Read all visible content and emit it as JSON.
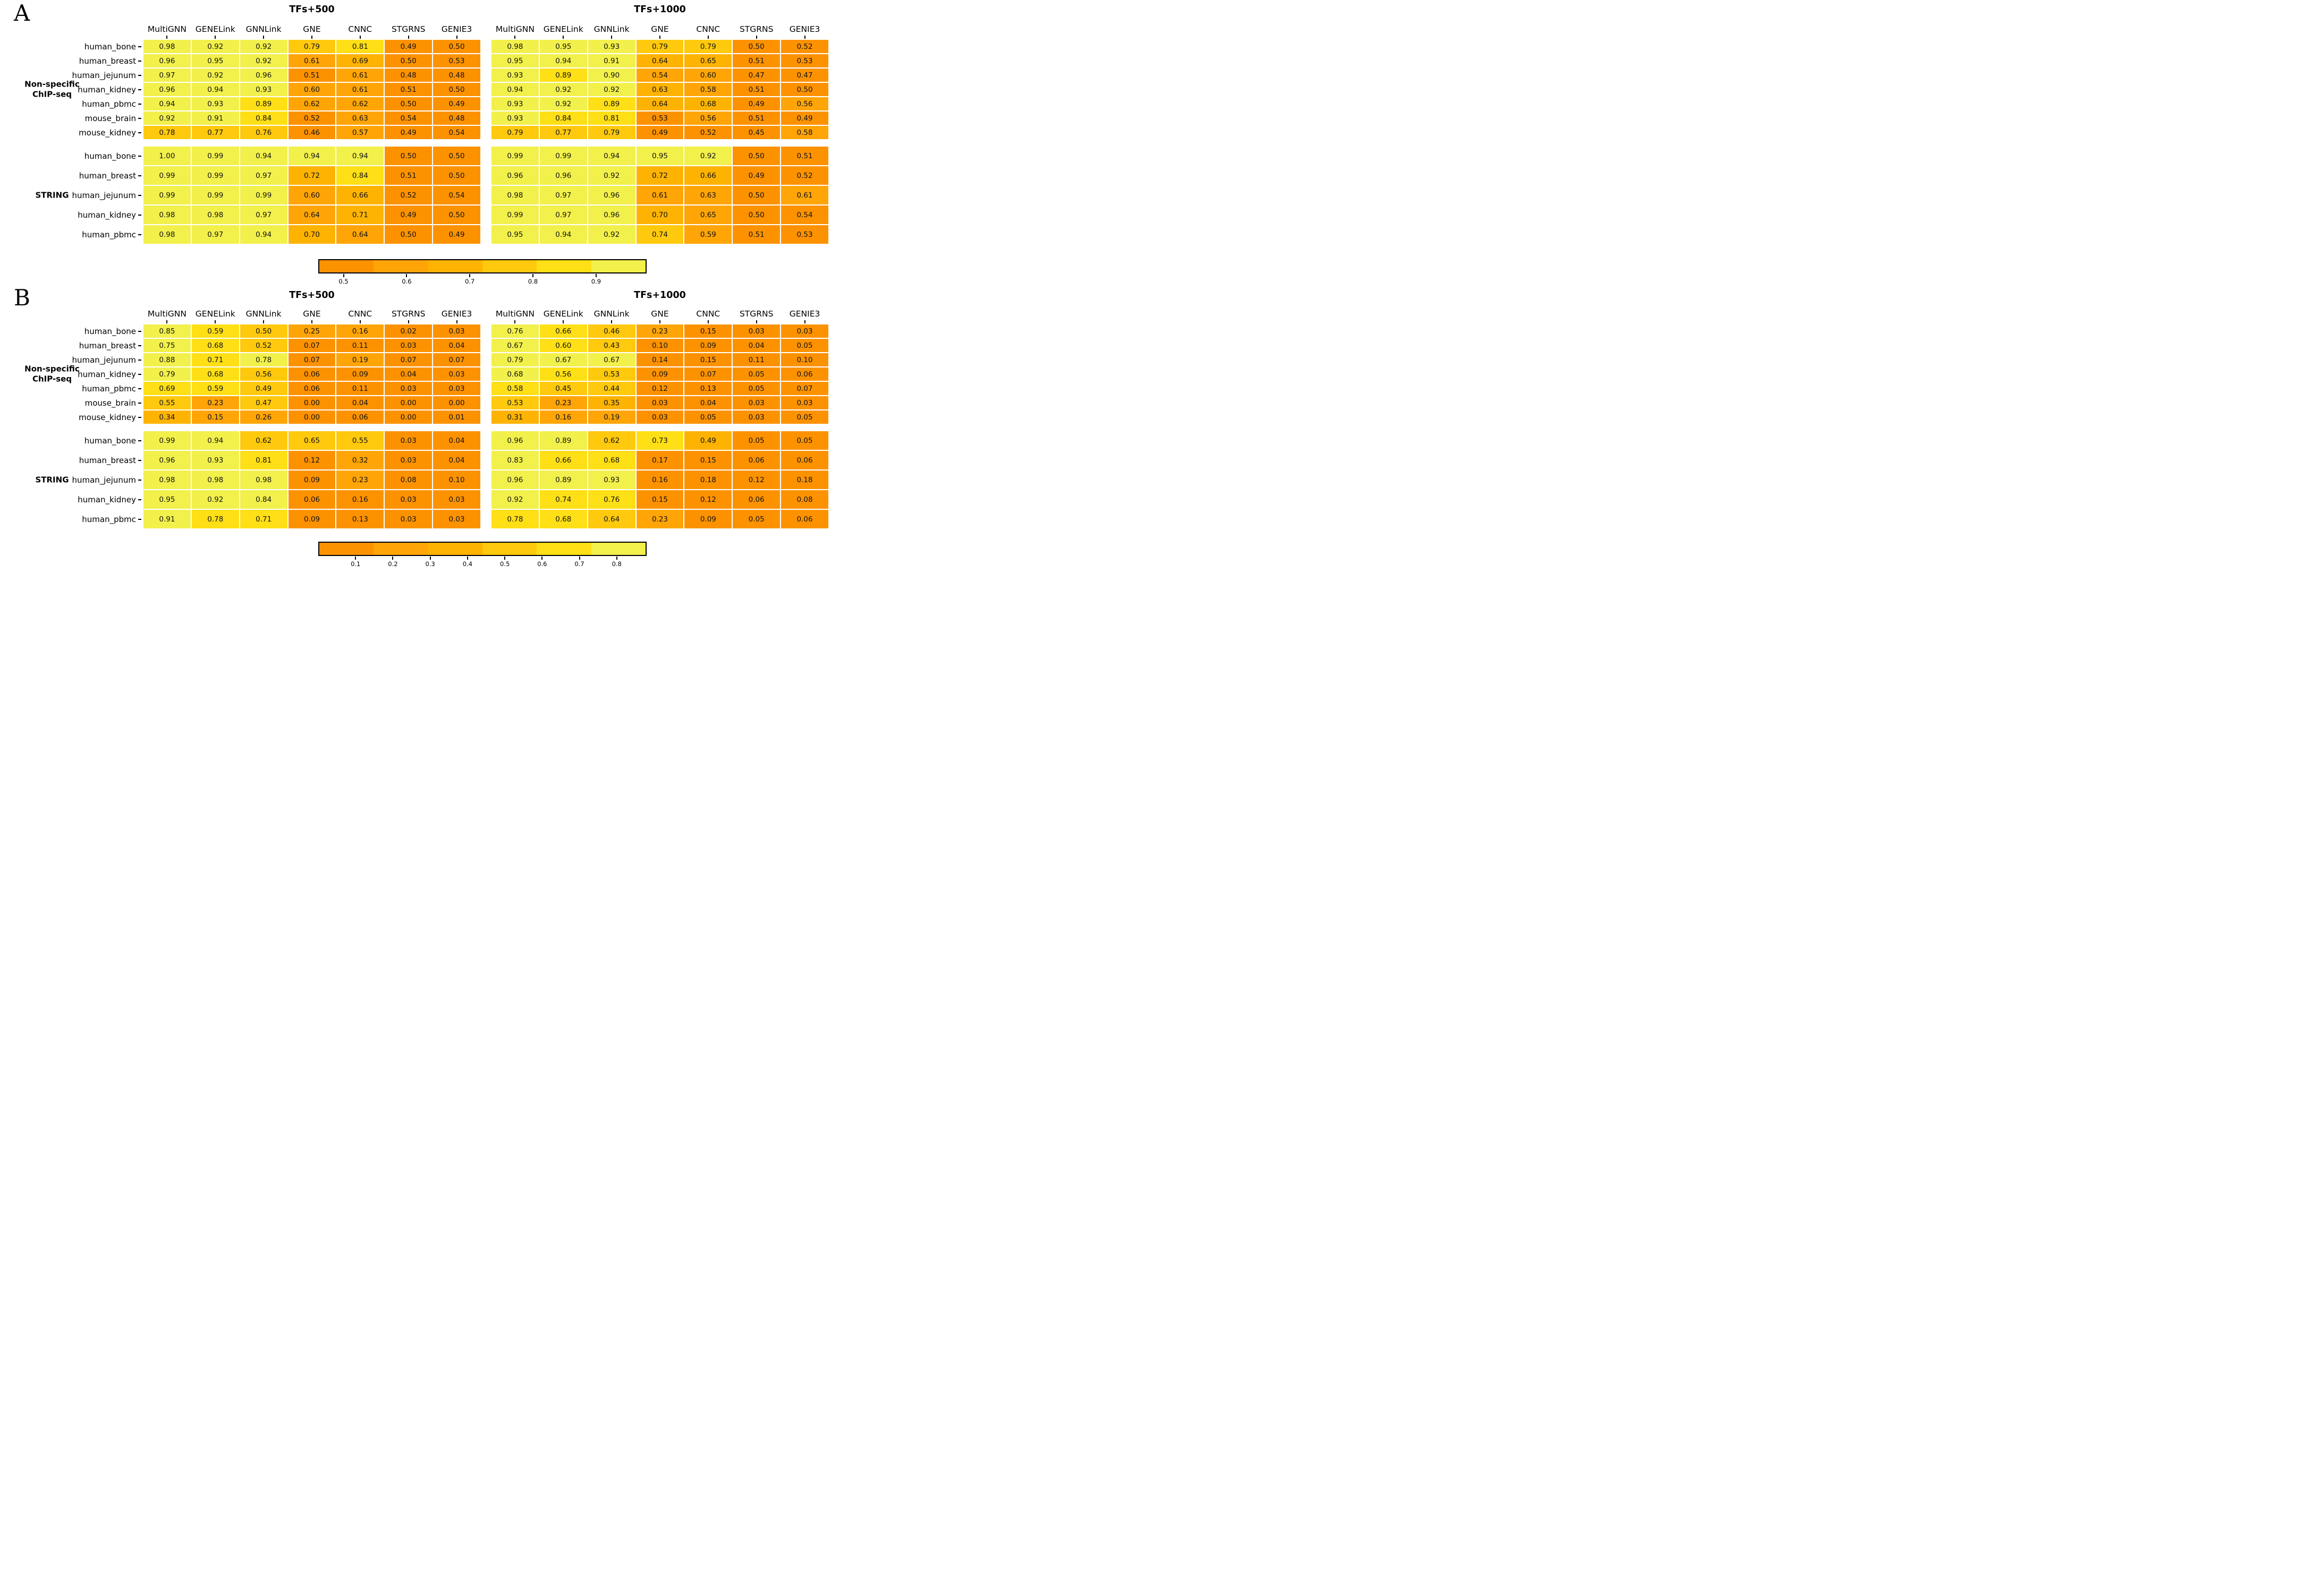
{
  "figure_type": "paired heatmap panels",
  "colormap": {
    "description": "6-level discrete orange-to-pale-yellow (Wistia-reversed-like), per-block min/max normalization",
    "levels": [
      "#FD9201",
      "#FFA507",
      "#FEB303",
      "#FFC90D",
      "#FFDF15",
      "#F2F04B"
    ]
  },
  "chart_data": [
    {
      "type": "heatmap",
      "panel": "A",
      "letter": "A",
      "block_titles": [
        "TFs+500",
        "TFs+1000"
      ],
      "columns": [
        "MultiGNN",
        "GENELink",
        "GNNLink",
        "GNE",
        "CNNC",
        "STGRNS",
        "GENIE3"
      ],
      "row_groups": [
        {
          "label_lines": [
            "Non-specific",
            "ChIP-seq"
          ],
          "rows": [
            "human_bone",
            "human_breast",
            "human_jejunum",
            "human_kidney",
            "human_pbmc",
            "mouse_brain",
            "mouse_kidney"
          ],
          "blocks": [
            {
              "tf": "TFs+500",
              "values": [
                [
                  "0.98",
                  "0.92",
                  "0.92",
                  "0.79",
                  "0.81",
                  "0.49",
                  "0.50"
                ],
                [
                  "0.96",
                  "0.95",
                  "0.92",
                  "0.61",
                  "0.69",
                  "0.50",
                  "0.53"
                ],
                [
                  "0.97",
                  "0.92",
                  "0.96",
                  "0.51",
                  "0.61",
                  "0.48",
                  "0.48"
                ],
                [
                  "0.96",
                  "0.94",
                  "0.93",
                  "0.60",
                  "0.61",
                  "0.51",
                  "0.50"
                ],
                [
                  "0.94",
                  "0.93",
                  "0.89",
                  "0.62",
                  "0.62",
                  "0.50",
                  "0.49"
                ],
                [
                  "0.92",
                  "0.91",
                  "0.84",
                  "0.52",
                  "0.63",
                  "0.54",
                  "0.48"
                ],
                [
                  "0.78",
                  "0.77",
                  "0.76",
                  "0.46",
                  "0.57",
                  "0.49",
                  "0.54"
                ]
              ]
            },
            {
              "tf": "TFs+1000",
              "values": [
                [
                  "0.98",
                  "0.95",
                  "0.93",
                  "0.79",
                  "0.79",
                  "0.50",
                  "0.52"
                ],
                [
                  "0.95",
                  "0.94",
                  "0.91",
                  "0.64",
                  "0.65",
                  "0.51",
                  "0.53"
                ],
                [
                  "0.93",
                  "0.89",
                  "0.90",
                  "0.54",
                  "0.60",
                  "0.47",
                  "0.47"
                ],
                [
                  "0.94",
                  "0.92",
                  "0.92",
                  "0.63",
                  "0.58",
                  "0.51",
                  "0.50"
                ],
                [
                  "0.93",
                  "0.92",
                  "0.89",
                  "0.64",
                  "0.68",
                  "0.49",
                  "0.56"
                ],
                [
                  "0.93",
                  "0.84",
                  "0.81",
                  "0.53",
                  "0.56",
                  "0.51",
                  "0.49"
                ],
                [
                  "0.79",
                  "0.77",
                  "0.79",
                  "0.49",
                  "0.52",
                  "0.45",
                  "0.58"
                ]
              ]
            }
          ]
        },
        {
          "label_lines": [
            "STRING"
          ],
          "rows": [
            "human_bone",
            "human_breast",
            "human_jejunum",
            "human_kidney",
            "human_pbmc"
          ],
          "blocks": [
            {
              "tf": "TFs+500",
              "values": [
                [
                  "1.00",
                  "0.99",
                  "0.94",
                  "0.94",
                  "0.94",
                  "0.50",
                  "0.50"
                ],
                [
                  "0.99",
                  "0.99",
                  "0.97",
                  "0.72",
                  "0.84",
                  "0.51",
                  "0.50"
                ],
                [
                  "0.99",
                  "0.99",
                  "0.99",
                  "0.60",
                  "0.66",
                  "0.52",
                  "0.54"
                ],
                [
                  "0.98",
                  "0.98",
                  "0.97",
                  "0.64",
                  "0.71",
                  "0.49",
                  "0.50"
                ],
                [
                  "0.98",
                  "0.97",
                  "0.94",
                  "0.70",
                  "0.64",
                  "0.50",
                  "0.49"
                ]
              ]
            },
            {
              "tf": "TFs+1000",
              "values": [
                [
                  "0.99",
                  "0.99",
                  "0.94",
                  "0.95",
                  "0.92",
                  "0.50",
                  "0.51"
                ],
                [
                  "0.96",
                  "0.96",
                  "0.92",
                  "0.72",
                  "0.66",
                  "0.49",
                  "0.52"
                ],
                [
                  "0.98",
                  "0.97",
                  "0.96",
                  "0.61",
                  "0.63",
                  "0.50",
                  "0.61"
                ],
                [
                  "0.99",
                  "0.97",
                  "0.96",
                  "0.70",
                  "0.65",
                  "0.50",
                  "0.54"
                ],
                [
                  "0.95",
                  "0.94",
                  "0.92",
                  "0.74",
                  "0.59",
                  "0.51",
                  "0.53"
                ]
              ]
            }
          ]
        }
      ],
      "colorbar": {
        "vmin": 0.46,
        "vmax": 0.98,
        "tick_labels": [
          "0.5",
          "0.6",
          "0.7",
          "0.8",
          "0.9"
        ],
        "tick_values": [
          0.5,
          0.6,
          0.7,
          0.8,
          0.9
        ]
      }
    },
    {
      "type": "heatmap",
      "panel": "B",
      "letter": "B",
      "block_titles": [
        "TFs+500",
        "TFs+1000"
      ],
      "columns": [
        "MultiGNN",
        "GENELink",
        "GNNLink",
        "GNE",
        "CNNC",
        "STGRNS",
        "GENIE3"
      ],
      "row_groups": [
        {
          "label_lines": [
            "Non-specific",
            "ChIP-seq"
          ],
          "rows": [
            "human_bone",
            "human_breast",
            "human_jejunum",
            "human_kidney",
            "human_pbmc",
            "mouse_brain",
            "mouse_kidney"
          ],
          "blocks": [
            {
              "tf": "TFs+500",
              "values": [
                [
                  "0.85",
                  "0.59",
                  "0.50",
                  "0.25",
                  "0.16",
                  "0.02",
                  "0.03"
                ],
                [
                  "0.75",
                  "0.68",
                  "0.52",
                  "0.07",
                  "0.11",
                  "0.03",
                  "0.04"
                ],
                [
                  "0.88",
                  "0.71",
                  "0.78",
                  "0.07",
                  "0.19",
                  "0.07",
                  "0.07"
                ],
                [
                  "0.79",
                  "0.68",
                  "0.56",
                  "0.06",
                  "0.09",
                  "0.04",
                  "0.03"
                ],
                [
                  "0.69",
                  "0.59",
                  "0.49",
                  "0.06",
                  "0.11",
                  "0.03",
                  "0.03"
                ],
                [
                  "0.55",
                  "0.23",
                  "0.47",
                  "0.00",
                  "0.04",
                  "0.00",
                  "0.00"
                ],
                [
                  "0.34",
                  "0.15",
                  "0.26",
                  "0.00",
                  "0.06",
                  "0.00",
                  "0.01"
                ]
              ]
            },
            {
              "tf": "TFs+1000",
              "values": [
                [
                  "0.76",
                  "0.66",
                  "0.46",
                  "0.23",
                  "0.15",
                  "0.03",
                  "0.03"
                ],
                [
                  "0.67",
                  "0.60",
                  "0.43",
                  "0.10",
                  "0.09",
                  "0.04",
                  "0.05"
                ],
                [
                  "0.79",
                  "0.67",
                  "0.67",
                  "0.14",
                  "0.15",
                  "0.11",
                  "0.10"
                ],
                [
                  "0.68",
                  "0.56",
                  "0.53",
                  "0.09",
                  "0.07",
                  "0.05",
                  "0.06"
                ],
                [
                  "0.58",
                  "0.45",
                  "0.44",
                  "0.12",
                  "0.13",
                  "0.05",
                  "0.07"
                ],
                [
                  "0.53",
                  "0.23",
                  "0.35",
                  "0.03",
                  "0.04",
                  "0.03",
                  "0.03"
                ],
                [
                  "0.31",
                  "0.16",
                  "0.19",
                  "0.03",
                  "0.05",
                  "0.03",
                  "0.05"
                ]
              ]
            }
          ]
        },
        {
          "label_lines": [
            "STRING"
          ],
          "rows": [
            "human_bone",
            "human_breast",
            "human_jejunum",
            "human_kidney",
            "human_pbmc"
          ],
          "blocks": [
            {
              "tf": "TFs+500",
              "values": [
                [
                  "0.99",
                  "0.94",
                  "0.62",
                  "0.65",
                  "0.55",
                  "0.03",
                  "0.04"
                ],
                [
                  "0.96",
                  "0.93",
                  "0.81",
                  "0.12",
                  "0.32",
                  "0.03",
                  "0.04"
                ],
                [
                  "0.98",
                  "0.98",
                  "0.98",
                  "0.09",
                  "0.23",
                  "0.08",
                  "0.10"
                ],
                [
                  "0.95",
                  "0.92",
                  "0.84",
                  "0.06",
                  "0.16",
                  "0.03",
                  "0.03"
                ],
                [
                  "0.91",
                  "0.78",
                  "0.71",
                  "0.09",
                  "0.13",
                  "0.03",
                  "0.03"
                ]
              ]
            },
            {
              "tf": "TFs+1000",
              "values": [
                [
                  "0.96",
                  "0.89",
                  "0.62",
                  "0.73",
                  "0.49",
                  "0.05",
                  "0.05"
                ],
                [
                  "0.83",
                  "0.66",
                  "0.68",
                  "0.17",
                  "0.15",
                  "0.06",
                  "0.06"
                ],
                [
                  "0.96",
                  "0.89",
                  "0.93",
                  "0.16",
                  "0.18",
                  "0.12",
                  "0.18"
                ],
                [
                  "0.92",
                  "0.74",
                  "0.76",
                  "0.15",
                  "0.12",
                  "0.06",
                  "0.08"
                ],
                [
                  "0.78",
                  "0.68",
                  "0.64",
                  "0.23",
                  "0.09",
                  "0.05",
                  "0.06"
                ]
              ]
            }
          ]
        }
      ],
      "colorbar": {
        "vmin": 0.0,
        "vmax": 0.88,
        "tick_labels": [
          "0.1",
          "0.2",
          "0.3",
          "0.4",
          "0.5",
          "0.6",
          "0.7",
          "0.8"
        ],
        "tick_values": [
          0.1,
          0.2,
          0.3,
          0.4,
          0.5,
          0.6,
          0.7,
          0.8
        ]
      }
    }
  ]
}
